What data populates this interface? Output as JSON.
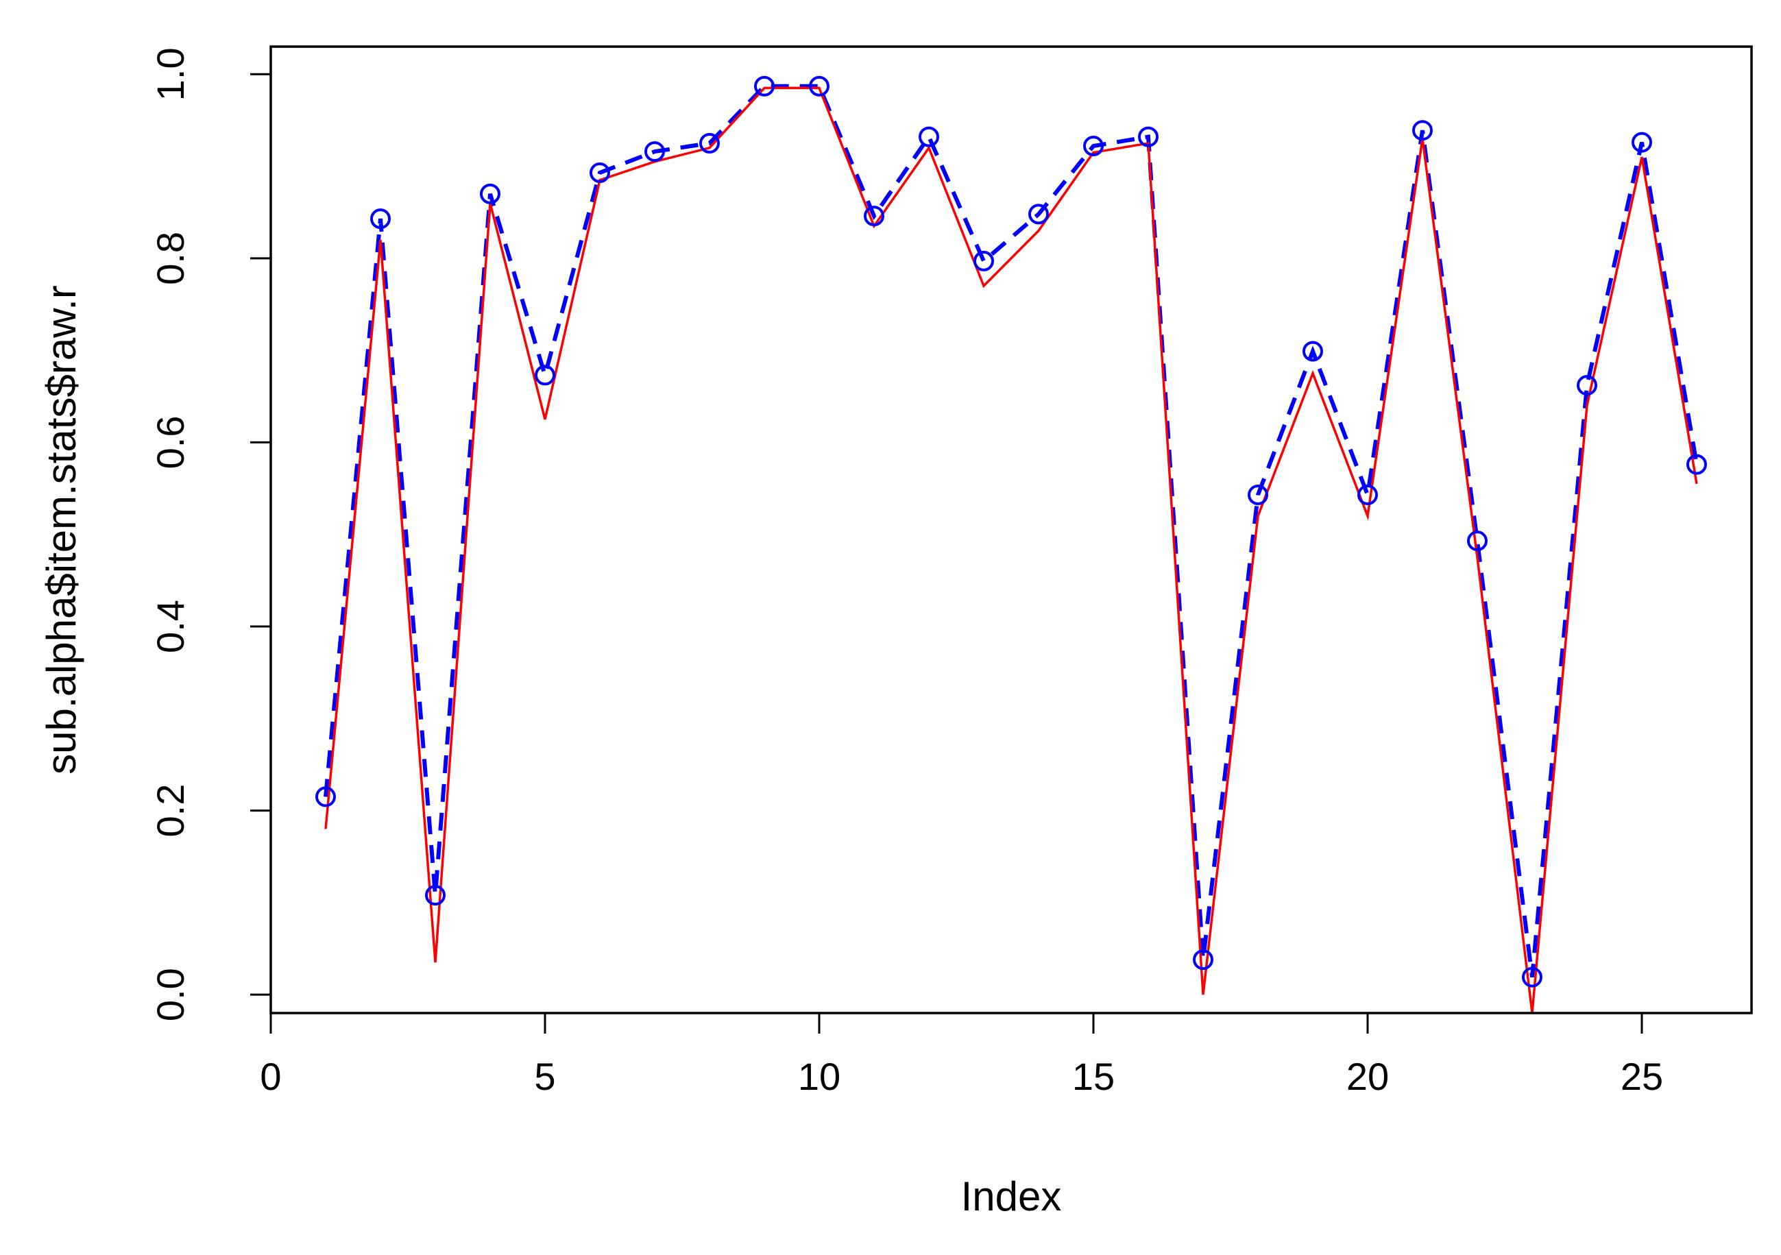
{
  "chart_data": {
    "type": "line",
    "xlabel": "Index",
    "ylabel": "sub.alpha$item.stats$raw.r",
    "xlim": [
      0,
      27
    ],
    "ylim": [
      -0.02,
      1.03
    ],
    "x_ticks": [
      0,
      5,
      10,
      15,
      20,
      25
    ],
    "y_ticks": [
      0.0,
      0.2,
      0.4,
      0.6,
      0.8,
      1.0
    ],
    "x_tick_labels": [
      "0",
      "5",
      "10",
      "15",
      "20",
      "25"
    ],
    "y_tick_labels": [
      "0.0",
      "0.2",
      "0.4",
      "0.6",
      "0.8",
      "1.0"
    ],
    "grid": false,
    "x": [
      1,
      2,
      3,
      4,
      5,
      6,
      7,
      8,
      9,
      10,
      11,
      12,
      13,
      14,
      15,
      16,
      17,
      18,
      19,
      20,
      21,
      22,
      23,
      24,
      25,
      26
    ],
    "series": [
      {
        "style": "points-dashed",
        "color": "#0000ff",
        "values": [
          0.215,
          0.843,
          0.108,
          0.87,
          0.673,
          0.893,
          0.916,
          0.925,
          0.987,
          0.987,
          0.846,
          0.932,
          0.797,
          0.848,
          0.922,
          0.932,
          0.038,
          0.543,
          0.699,
          0.543,
          0.939,
          0.493,
          0.019,
          0.662,
          0.926,
          0.576
        ]
      },
      {
        "style": "line",
        "color": "#ff0000",
        "values": [
          0.18,
          0.82,
          0.035,
          0.86,
          0.625,
          0.885,
          0.905,
          0.92,
          0.985,
          0.985,
          0.835,
          0.92,
          0.77,
          0.83,
          0.915,
          0.925,
          0.0,
          0.52,
          0.675,
          0.52,
          0.93,
          0.475,
          -0.02,
          0.64,
          0.91,
          0.555
        ]
      }
    ]
  }
}
